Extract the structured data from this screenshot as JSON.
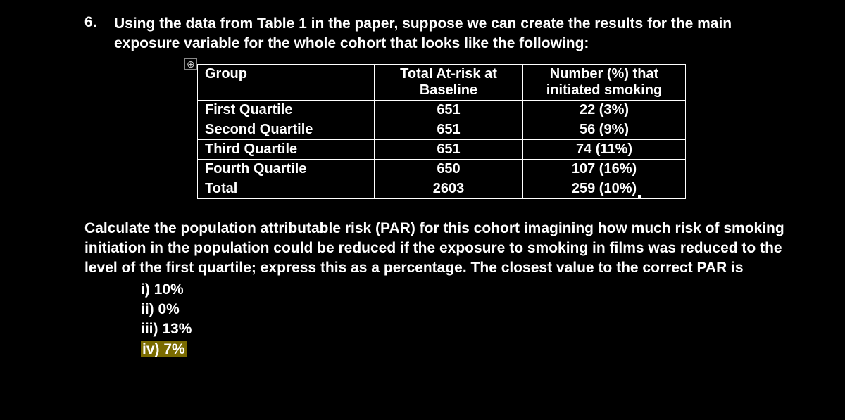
{
  "question": {
    "number": "6.",
    "intro": "Using the data from Table 1 in the paper, suppose we can create the results for the main exposure variable for the whole cohort that looks like the following:"
  },
  "anchor_glyph": "⊕",
  "table": {
    "headers": {
      "group": "Group",
      "atrisk_l1": "Total At-risk at",
      "atrisk_l2": "Baseline",
      "init_l1": "Number (%) that",
      "init_l2": "initiated smoking"
    },
    "rows": [
      {
        "group": "First Quartile",
        "atrisk": "651",
        "init": "22 (3%)"
      },
      {
        "group": "Second Quartile",
        "atrisk": "651",
        "init": "56 (9%)"
      },
      {
        "group": "Third Quartile",
        "atrisk": "651",
        "init": "74 (11%)"
      },
      {
        "group": "Fourth Quartile",
        "atrisk": "650",
        "init": "107 (16%)"
      },
      {
        "group": "Total",
        "atrisk": "2603",
        "init": "259 (10%)"
      }
    ]
  },
  "calc": "Calculate the population attributable risk (PAR) for this cohort imagining how much risk of smoking initiation in the population could be reduced if the exposure to smoking in films was reduced to the level of the first quartile; express this as a percentage. The closest value to the correct PAR is ",
  "options": {
    "i": "i) 10%",
    "ii": "ii) 0%",
    "iii": "iii) 13%",
    "iv": "iv) 7%"
  }
}
